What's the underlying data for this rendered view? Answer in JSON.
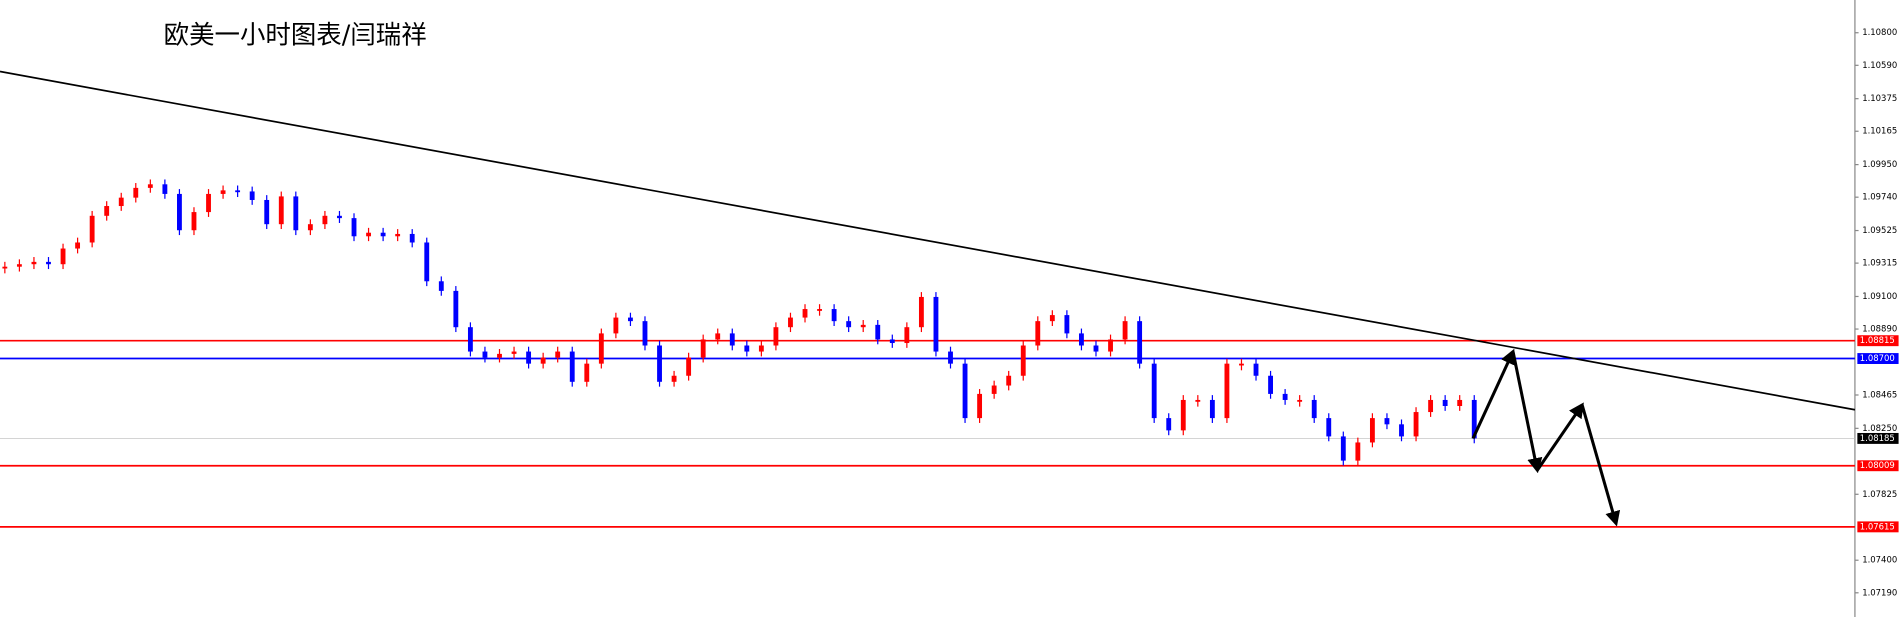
{
  "chart_data": {
    "type": "candlestick",
    "title": "欧美一小时图表/闫瑞祥",
    "ylim": [
      1.07034,
      1.11011
    ],
    "yticks": [
      {
        "value": 1.108,
        "label": "1.10800"
      },
      {
        "value": 1.1059,
        "label": "1.10590"
      },
      1.10375,
      1.10165,
      {
        "value": 1.0995,
        "label": "1.09950"
      },
      {
        "value": 1.0974,
        "label": "1.09740"
      },
      1.09525,
      1.09315,
      {
        "value": 1.091,
        "label": "1.09100"
      },
      {
        "value": 1.0889,
        "label": "1.08890"
      },
      1.08465,
      {
        "value": 1.0825,
        "label": "1.08250"
      },
      1.07825,
      {
        "value": 1.074,
        "label": "1.07400"
      },
      {
        "value": 1.0719,
        "label": "1.07190"
      }
    ],
    "up_color": "#ff0000",
    "down_color": "#0000ff",
    "values": [
      1.09292,
      1.09308,
      1.09323,
      1.09308,
      1.09409,
      1.09448,
      1.0962,
      1.09683,
      1.09737,
      1.098,
      1.09823,
      1.09761,
      1.09527,
      1.09644,
      1.09761,
      1.09784,
      1.09777,
      1.09722,
      1.09566,
      1.09745,
      1.09527,
      1.09566,
      1.0962,
      1.09605,
      1.09488,
      1.09511,
      1.09488,
      1.09503,
      1.09448,
      1.09198,
      1.09136,
      1.08902,
      1.08745,
      1.08706,
      1.0873,
      1.08745,
      1.08667,
      1.08706,
      1.08745,
      1.0855,
      1.08667,
      1.08862,
      1.08964,
      1.08941,
      1.08784,
      1.0855,
      1.08589,
      1.08706,
      1.08823,
      1.08862,
      1.08784,
      1.08745,
      1.08784,
      1.08902,
      1.08964,
      1.09019,
      1.09019,
      1.08941,
      1.08902,
      1.08917,
      1.08823,
      1.088,
      1.08902,
      1.09097,
      1.08745,
      1.08667,
      1.08316,
      1.08472,
      1.08526,
      1.08589,
      1.08784,
      1.08941,
      1.0898,
      1.08862,
      1.08784,
      1.08745,
      1.08823,
      1.08941,
      1.08667,
      1.08316,
      1.08237,
      1.08433,
      1.08433,
      1.08316,
      1.08667,
      1.08667,
      1.08589,
      1.08472,
      1.08433,
      1.08433,
      1.08316,
      1.08198,
      1.08042,
      1.08159,
      1.08316,
      1.08276,
      1.08198,
      1.08355,
      1.08433,
      1.08394,
      1.08433,
      1.08185
    ],
    "levels": [
      {
        "value": 1.08815,
        "color": "#ff0000"
      },
      {
        "value": 1.087,
        "label": "1.08700",
        "color": "#0000ff"
      },
      {
        "value": 1.08185,
        "color": "#000000"
      },
      {
        "value": 1.08009,
        "color": "#ff0000"
      },
      {
        "value": 1.07615,
        "color": "#ff0000"
      }
    ],
    "trendline": [
      1.1055,
      1.0837
    ],
    "projection": [
      1.08185,
      1.08745,
      1.0798,
      1.08401,
      1.07636
    ]
  }
}
